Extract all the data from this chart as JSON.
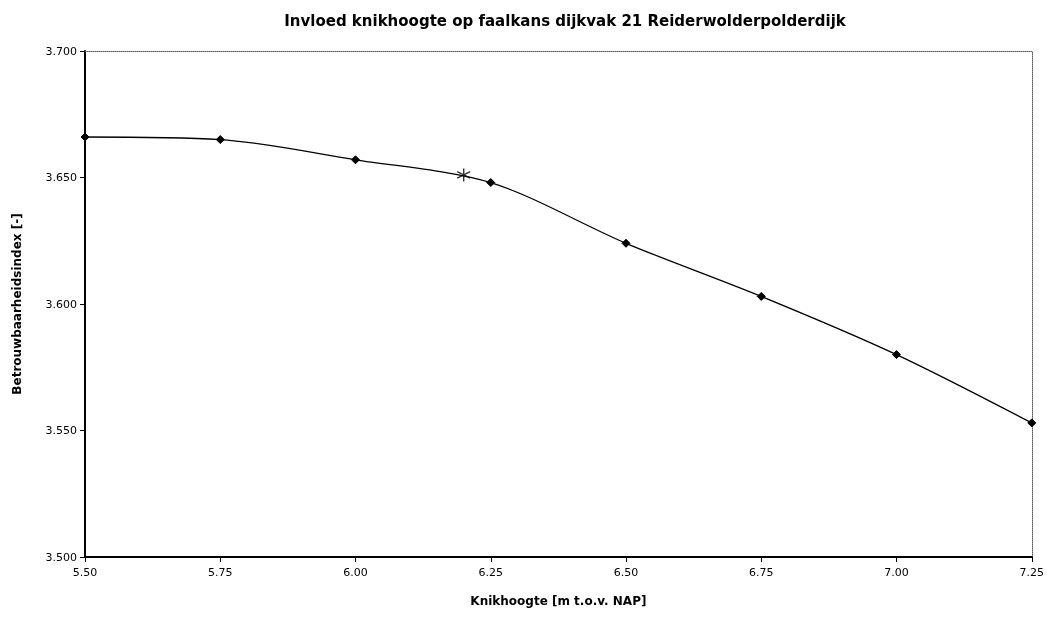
{
  "chart_data": {
    "type": "line",
    "title": "Invloed knikhoogte op faalkans dijkvak 21 Reiderwolderpolderdijk",
    "xlabel": "Knikhoogte [m t.o.v. NAP]",
    "ylabel": "Betrouwbaarheidsindex [-]",
    "series": [
      {
        "color": "#000000",
        "marker": "diamond",
        "line_style": "solid",
        "x": [
          5.5,
          5.75,
          6.0,
          6.25,
          6.5,
          6.75,
          7.0,
          7.25
        ],
        "values": [
          3.666,
          3.665,
          3.657,
          3.648,
          3.624,
          3.603,
          3.58,
          3.553
        ]
      },
      {
        "type": "scatter",
        "color": "#000000",
        "marker": "cross",
        "x": [
          6.2
        ],
        "values": [
          3.651
        ]
      }
    ],
    "xlim": [
      5.5,
      7.25
    ],
    "xticks": [
      {
        "value": 5.5,
        "label": "5.50"
      },
      {
        "value": 5.75,
        "label": "5.75"
      },
      {
        "value": 6.0,
        "label": "6.00"
      },
      {
        "value": 6.25,
        "label": "6.25"
      },
      {
        "value": 6.5,
        "label": "6.50"
      },
      {
        "value": 6.75,
        "label": "6.75"
      },
      {
        "value": 7.0,
        "label": "7.00"
      },
      {
        "value": 7.25,
        "label": "7.25"
      }
    ],
    "ylim": [
      3.5,
      3.7
    ],
    "yticks": [
      {
        "value": 3.5,
        "label": "3.500"
      },
      {
        "value": 3.55,
        "label": "3.550"
      },
      {
        "value": 3.6,
        "label": "3.600"
      },
      {
        "value": 3.65,
        "label": "3.650"
      },
      {
        "value": 3.7,
        "label": "3.700"
      }
    ],
    "grid": false
  }
}
